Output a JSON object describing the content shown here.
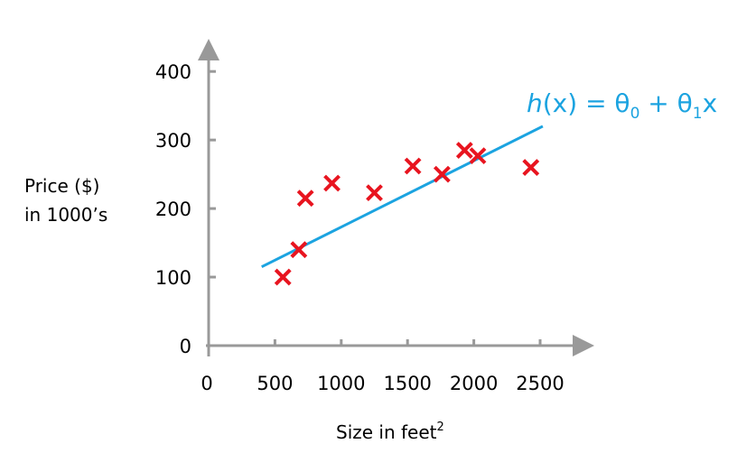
{
  "chart_data": {
    "type": "scatter",
    "xlabel": "Size in feet",
    "xlabel_sup": "2",
    "ylabel_lines": [
      "Price ($)",
      "in 1000’s"
    ],
    "xlim": [
      0,
      2800
    ],
    "ylim": [
      0,
      440
    ],
    "x_ticks": [
      0,
      500,
      1000,
      1500,
      2000,
      2500
    ],
    "x_tick_labels": [
      "0",
      "500",
      "1000",
      "1500",
      "2000",
      "2500"
    ],
    "y_ticks": [
      0,
      100,
      200,
      300,
      400
    ],
    "y_tick_labels": [
      "0",
      "100",
      "200",
      "300",
      "400"
    ],
    "grid": false,
    "points": [
      {
        "x": 560,
        "y": 100
      },
      {
        "x": 680,
        "y": 140
      },
      {
        "x": 730,
        "y": 215
      },
      {
        "x": 930,
        "y": 237
      },
      {
        "x": 1250,
        "y": 223
      },
      {
        "x": 1540,
        "y": 262
      },
      {
        "x": 1760,
        "y": 250
      },
      {
        "x": 1930,
        "y": 285
      },
      {
        "x": 2030,
        "y": 277
      },
      {
        "x": 2430,
        "y": 260
      }
    ],
    "fit_line": {
      "x": [
        400,
        2520
      ],
      "y": [
        115,
        320
      ]
    },
    "point_color": "#e8141f",
    "line_color": "#1ba3e0",
    "formula": {
      "h": "h",
      "x": "(x) = θ",
      "sub0": "0",
      "plus": " + θ",
      "sub1": "1",
      "var": "x"
    }
  }
}
